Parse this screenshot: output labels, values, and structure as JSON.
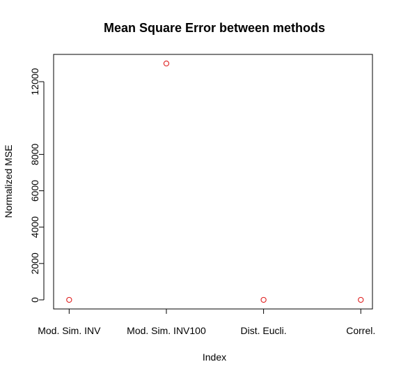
{
  "chart_data": {
    "type": "scatter",
    "title": "Mean Square Error between methods",
    "xlabel": "Index",
    "ylabel": "Normalized MSE",
    "categories": [
      "Mod. Sim. INV",
      "Mod. Sim. INV100",
      "Dist. Eucli.",
      "Correl."
    ],
    "values": [
      0,
      13000,
      0,
      0
    ],
    "yticks": [
      "0",
      "2000",
      "4000",
      "6000",
      "8000",
      "12000"
    ],
    "ylim": [
      -500,
      13500
    ],
    "xlim": [
      0.84,
      4.12
    ],
    "grid": false,
    "legend": "none",
    "point_color": "#df2020",
    "axis_color": "#000000"
  }
}
